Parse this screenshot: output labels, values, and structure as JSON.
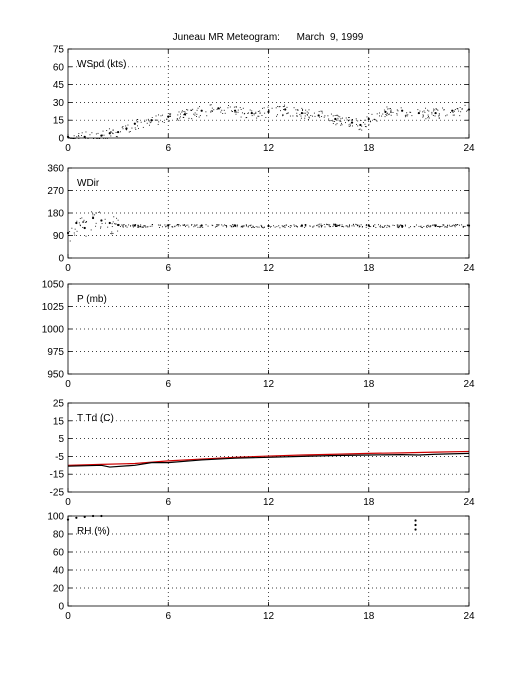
{
  "title": "Juneau MR Meteogram:      March  9, 1999",
  "chart_data": [
    {
      "type": "scatter",
      "label": "WSpd (kts)",
      "x_ticks": [
        "0",
        "6",
        "12",
        "18",
        "24"
      ],
      "y_ticks": [
        "0",
        "15",
        "30",
        "45",
        "60",
        "75"
      ],
      "xlim": [
        0,
        24
      ],
      "ylim": [
        0,
        75
      ],
      "grid": true,
      "series": [
        {
          "color": "#000000",
          "x": [
            0,
            1,
            2,
            2.5,
            3,
            3.5,
            4,
            5,
            6,
            7,
            8,
            9,
            10,
            11,
            12,
            13,
            14,
            15,
            16,
            17,
            17.5,
            18,
            19,
            20,
            21,
            22,
            23,
            24
          ],
          "y": [
            1,
            1,
            2,
            4,
            5,
            8,
            12,
            15,
            18,
            20,
            23,
            25,
            23,
            21,
            22,
            24,
            21,
            19,
            16,
            13,
            11,
            16,
            22,
            23,
            21,
            21,
            23,
            24
          ]
        }
      ]
    },
    {
      "type": "scatter",
      "label": "WDir",
      "x_ticks": [
        "0",
        "6",
        "12",
        "18",
        "24"
      ],
      "y_ticks": [
        "0",
        "90",
        "180",
        "270",
        "360"
      ],
      "xlim": [
        0,
        24
      ],
      "ylim": [
        0,
        360
      ],
      "grid": true,
      "series": [
        {
          "color": "#000000",
          "x": [
            0,
            0.5,
            1,
            1.5,
            2,
            2.5,
            3,
            4,
            6,
            8,
            10,
            12,
            14,
            16,
            18,
            20,
            22,
            24
          ],
          "y": [
            100,
            140,
            120,
            160,
            150,
            140,
            132,
            130,
            130,
            130,
            130,
            128,
            130,
            133,
            130,
            128,
            130,
            130
          ]
        }
      ]
    },
    {
      "type": "line",
      "label": "P (mb)",
      "x_ticks": [
        "0",
        "6",
        "12",
        "18",
        "24"
      ],
      "y_ticks": [
        "950",
        "975",
        "1000",
        "1025",
        "1050"
      ],
      "xlim": [
        0,
        24
      ],
      "ylim": [
        950,
        1050
      ],
      "grid": true,
      "series": []
    },
    {
      "type": "line",
      "label": "T Td (C)",
      "x_ticks": [
        "0",
        "6",
        "12",
        "18",
        "24"
      ],
      "y_ticks": [
        "-25",
        "-15",
        "-5",
        "5",
        "15",
        "25"
      ],
      "xlim": [
        0,
        24
      ],
      "ylim": [
        -25,
        25
      ],
      "grid": true,
      "series": [
        {
          "color": "#cc0000",
          "x": [
            0,
            2,
            4,
            6,
            8,
            10,
            12,
            14,
            16,
            18,
            20,
            22,
            24
          ],
          "y": [
            -10,
            -9.5,
            -9,
            -7.5,
            -6.5,
            -5.5,
            -4.8,
            -4.2,
            -3.8,
            -3.3,
            -3.0,
            -2.6,
            -2.2
          ]
        },
        {
          "color": "#000000",
          "x": [
            0,
            2,
            2.5,
            4,
            5,
            6,
            8,
            10,
            12,
            14,
            16,
            18,
            20,
            21,
            22,
            24
          ],
          "y": [
            -10.5,
            -10,
            -11,
            -10,
            -8.5,
            -8.5,
            -7,
            -6,
            -5.5,
            -5,
            -4.5,
            -4.2,
            -4,
            -4.2,
            -3.8,
            -3.3
          ]
        }
      ]
    },
    {
      "type": "scatter",
      "label": "RH (%)",
      "x_ticks": [
        "0",
        "6",
        "12",
        "18",
        "24"
      ],
      "y_ticks": [
        "0",
        "20",
        "40",
        "60",
        "80",
        "100"
      ],
      "xlim": [
        0,
        24
      ],
      "ylim": [
        0,
        100
      ],
      "grid": true,
      "series": [
        {
          "color": "#000000",
          "x": [
            0,
            0.5,
            1,
            1.5,
            2,
            20.8,
            20.8,
            20.8
          ],
          "y": [
            96,
            98,
            99,
            100,
            100,
            85,
            90,
            95
          ]
        }
      ]
    }
  ]
}
